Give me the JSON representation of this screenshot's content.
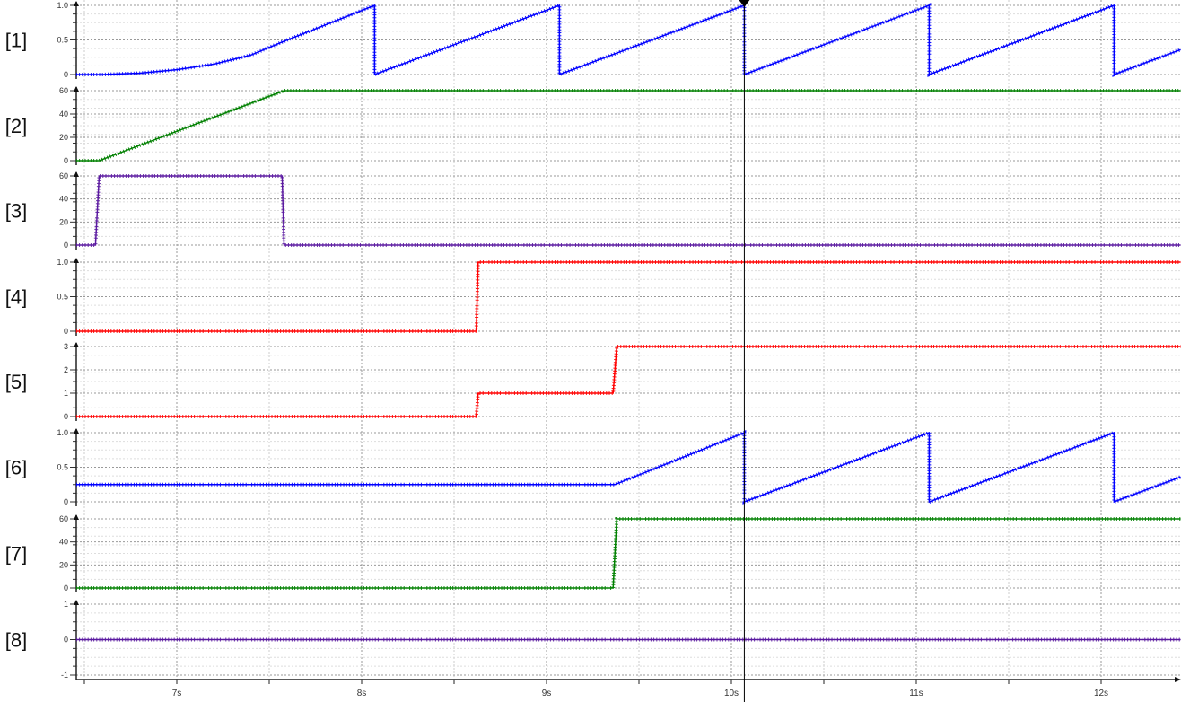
{
  "chart_data": {
    "type": "line",
    "title": "",
    "x_unit": "s",
    "xlim": [
      6.456,
      12.43
    ],
    "x_ticks": [
      "7s",
      "8s",
      "9s",
      "10s",
      "11s",
      "12s"
    ],
    "x_tick_values": [
      7,
      8,
      9,
      10,
      11,
      12
    ],
    "grid": true,
    "cursor_x": 10.07,
    "panels": [
      {
        "label": "[1]",
        "ylim": [
          0,
          1
        ],
        "yticks": [
          "0",
          "0.5",
          "1.0"
        ],
        "ytick_values": [
          0,
          0.5,
          1
        ],
        "color": "#0000ff",
        "points": [
          [
            6.456,
            0
          ],
          [
            6.6,
            0
          ],
          [
            6.8,
            0.02
          ],
          [
            7.0,
            0.07
          ],
          [
            7.2,
            0.15
          ],
          [
            7.4,
            0.28
          ],
          [
            7.57,
            0.47
          ],
          [
            8.07,
            1.0
          ],
          [
            8.07,
            0
          ],
          [
            9.07,
            1.0
          ],
          [
            9.07,
            0
          ],
          [
            10.07,
            1.0
          ],
          [
            10.07,
            0
          ],
          [
            11.07,
            1.0
          ],
          [
            11.07,
            0
          ],
          [
            12.07,
            1.0
          ],
          [
            12.07,
            0
          ],
          [
            12.43,
            0.36
          ]
        ]
      },
      {
        "label": "[2]",
        "ylim": [
          0,
          60
        ],
        "yticks": [
          "0",
          "20",
          "40",
          "60"
        ],
        "ytick_values": [
          0,
          20,
          40,
          60
        ],
        "color": "#008000",
        "points": [
          [
            6.456,
            0
          ],
          [
            6.58,
            0
          ],
          [
            7.58,
            60
          ],
          [
            12.43,
            60
          ]
        ]
      },
      {
        "label": "[3]",
        "ylim": [
          0,
          60
        ],
        "yticks": [
          "0",
          "20",
          "40",
          "60"
        ],
        "ytick_values": [
          0,
          20,
          40,
          60
        ],
        "color": "#5b1aa0",
        "points": [
          [
            6.456,
            0
          ],
          [
            6.56,
            0
          ],
          [
            6.58,
            60
          ],
          [
            7.57,
            60
          ],
          [
            7.58,
            0
          ],
          [
            12.43,
            0
          ]
        ]
      },
      {
        "label": "[4]",
        "ylim": [
          0,
          1
        ],
        "yticks": [
          "0",
          "0.5",
          "1.0"
        ],
        "ytick_values": [
          0,
          0.5,
          1
        ],
        "color": "#ff0000",
        "points": [
          [
            6.456,
            0
          ],
          [
            8.62,
            0
          ],
          [
            8.63,
            1
          ],
          [
            12.43,
            1
          ]
        ]
      },
      {
        "label": "[5]",
        "ylim": [
          0,
          3
        ],
        "yticks": [
          "0",
          "1",
          "2",
          "3"
        ],
        "ytick_values": [
          0,
          1,
          2,
          3
        ],
        "color": "#ff0000",
        "points": [
          [
            6.456,
            0
          ],
          [
            8.62,
            0
          ],
          [
            8.63,
            1
          ],
          [
            9.36,
            1
          ],
          [
            9.38,
            3
          ],
          [
            12.43,
            3
          ]
        ]
      },
      {
        "label": "[6]",
        "ylim": [
          0,
          1
        ],
        "yticks": [
          "0",
          "0.5",
          "1.0"
        ],
        "ytick_values": [
          0,
          0.5,
          1
        ],
        "color": "#0000ff",
        "points": [
          [
            6.456,
            0.25
          ],
          [
            9.37,
            0.25
          ],
          [
            10.07,
            1.0
          ],
          [
            10.07,
            0
          ],
          [
            11.07,
            1.0
          ],
          [
            11.07,
            0
          ],
          [
            12.07,
            1.0
          ],
          [
            12.07,
            0
          ],
          [
            12.43,
            0.36
          ]
        ]
      },
      {
        "label": "[7]",
        "ylim": [
          0,
          60
        ],
        "yticks": [
          "0",
          "20",
          "40",
          "60"
        ],
        "ytick_values": [
          0,
          20,
          40,
          60
        ],
        "color": "#008000",
        "points": [
          [
            6.456,
            0
          ],
          [
            9.36,
            0
          ],
          [
            9.38,
            60
          ],
          [
            12.43,
            60
          ]
        ]
      },
      {
        "label": "[8]",
        "ylim": [
          -1,
          1
        ],
        "yticks": [
          "-1",
          "0",
          "1"
        ],
        "ytick_values": [
          -1,
          0,
          1
        ],
        "color": "#5b1aa0",
        "points": [
          [
            6.456,
            0
          ],
          [
            12.43,
            0
          ]
        ]
      }
    ]
  }
}
